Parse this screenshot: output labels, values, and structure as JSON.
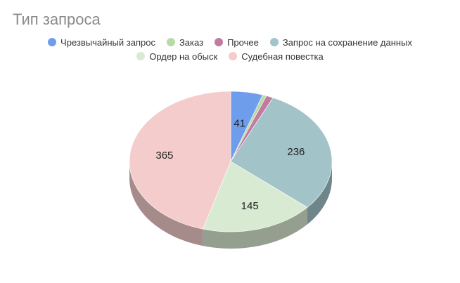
{
  "chart_data": {
    "type": "pie",
    "title": "Тип запроса",
    "legend_placement": "top",
    "three_d": true,
    "slices": [
      {
        "name": "Чрезвычайный запрос",
        "value": 41,
        "color": "#6e9eeb",
        "label": "41"
      },
      {
        "name": "Заказ",
        "value": 5,
        "color": "#b7dba8",
        "label": ""
      },
      {
        "name": "Прочее",
        "value": 9,
        "color": "#c27ba0",
        "label": ""
      },
      {
        "name": "Запрос на сохранение данных",
        "value": 236,
        "color": "#a2c4c9",
        "label": "236"
      },
      {
        "name": "Ордер на обыск",
        "value": 145,
        "color": "#d9ead3",
        "label": "145"
      },
      {
        "name": "Судебная повестка",
        "value": 365,
        "color": "#f4cccc",
        "label": "365"
      }
    ]
  }
}
